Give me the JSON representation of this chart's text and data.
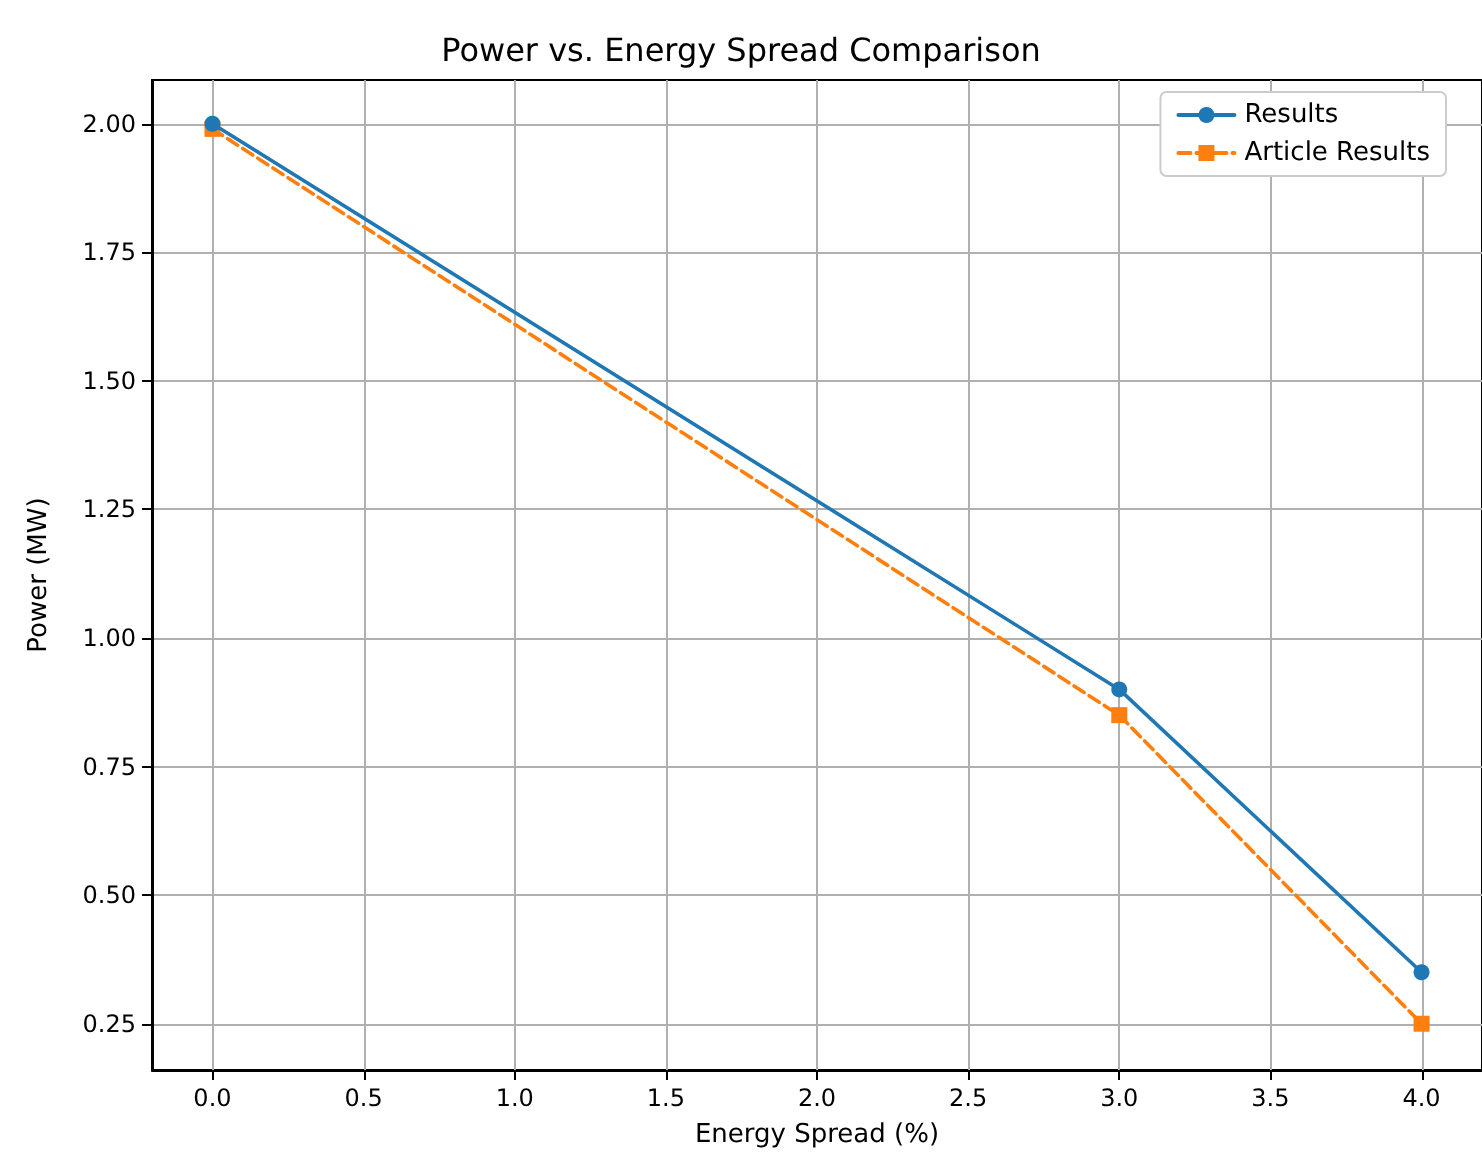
{
  "chart_data": {
    "type": "line",
    "title": "Power vs. Energy Spread Comparison",
    "xlabel": "Energy Spread (%)",
    "ylabel": "Power (MW)",
    "x": [
      0,
      3,
      4
    ],
    "series": [
      {
        "name": "Results",
        "color": "#1f77b4",
        "values": [
          2.0,
          0.9,
          0.35
        ],
        "marker": "circle",
        "line_style": "solid"
      },
      {
        "name": "Article Results",
        "color": "#ff7f0e",
        "values": [
          1.99,
          0.85,
          0.25
        ],
        "marker": "square",
        "line_style": "dashed"
      }
    ],
    "xlim": [
      -0.2,
      4.2
    ],
    "xticks": [
      {
        "value": 0,
        "label": "0.0"
      },
      {
        "value": 0.5,
        "label": "0.5"
      },
      {
        "value": 1,
        "label": "1.0"
      },
      {
        "value": 1.5,
        "label": "1.5"
      },
      {
        "value": 2,
        "label": "2.0"
      },
      {
        "value": 2.5,
        "label": "2.5"
      },
      {
        "value": 3,
        "label": "3.0"
      },
      {
        "value": 3.5,
        "label": "3.5"
      },
      {
        "value": 4,
        "label": "4.0"
      }
    ],
    "ylim": [
      0.16,
      2.085
    ],
    "yticks": [
      0.25,
      {
        "value": 0.5,
        "label": "0.50"
      },
      0.75,
      {
        "value": 1,
        "label": "1.00"
      },
      1.25,
      {
        "value": 1.5,
        "label": "1.50"
      },
      1.75,
      {
        "value": 2,
        "label": "2.00"
      }
    ],
    "grid": true,
    "legend": "top right"
  }
}
